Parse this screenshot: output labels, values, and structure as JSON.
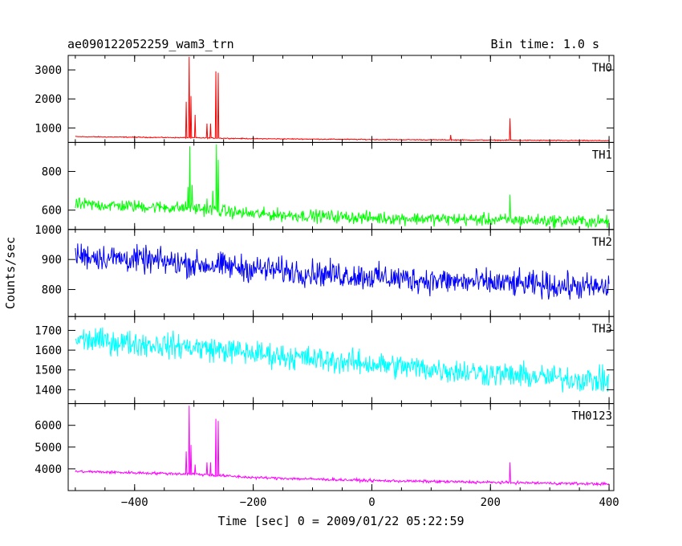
{
  "chart_data": {
    "type": "line",
    "title": "ae090122052259_wam3_trn",
    "bin_time": "Bin time: 1.0 s",
    "xlabel": "Time [sec] 0 = 2009/01/22 05:22:59",
    "ylabel": "Counts/sec",
    "xlim": [
      -512,
      408
    ],
    "x_ticks": [
      -400,
      -200,
      0,
      200,
      400
    ],
    "x_tick_labels": [
      "−400",
      "−200",
      "0",
      "200",
      "400"
    ],
    "x_data_range": [
      -500,
      400
    ],
    "panels": [
      {
        "name": "TH0",
        "color": "#ff0000",
        "ylim": [
          500,
          3500
        ],
        "y_ticks": [
          1000,
          2000,
          3000
        ],
        "y_tick_labels": [
          "1000",
          "2000",
          "3000"
        ],
        "noise": 14,
        "baseline": [
          [
            -500,
            700
          ],
          [
            -300,
            660
          ],
          [
            -200,
            630
          ],
          [
            0,
            600
          ],
          [
            200,
            580
          ],
          [
            400,
            560
          ]
        ],
        "spikes": [
          [
            -313,
            1900
          ],
          [
            -308,
            3450
          ],
          [
            -305,
            2100
          ],
          [
            -298,
            1450
          ],
          [
            -278,
            1150
          ],
          [
            -272,
            1150
          ],
          [
            -263,
            2950
          ],
          [
            -259,
            2900
          ],
          [
            133,
            760
          ],
          [
            233,
            1330
          ]
        ]
      },
      {
        "name": "TH1",
        "color": "#00ff00",
        "ylim": [
          500,
          950
        ],
        "y_ticks": [
          600,
          800
        ],
        "y_tick_labels": [
          "600",
          "800"
        ],
        "noise": 28,
        "baseline": [
          [
            -500,
            630
          ],
          [
            -300,
            610
          ],
          [
            -200,
            580
          ],
          [
            0,
            560
          ],
          [
            200,
            550
          ],
          [
            400,
            540
          ]
        ],
        "spikes": [
          [
            -310,
            720
          ],
          [
            -307,
            930
          ],
          [
            -303,
            730
          ],
          [
            -278,
            660
          ],
          [
            -268,
            700
          ],
          [
            -262,
            940
          ],
          [
            -259,
            860
          ],
          [
            233,
            680
          ]
        ]
      },
      {
        "name": "TH2",
        "color": "#0000ff",
        "ylim": [
          710,
          1000
        ],
        "y_ticks": [
          800,
          900,
          1000
        ],
        "y_tick_labels": [
          "800",
          "900",
          "1000"
        ],
        "noise": 38,
        "baseline": [
          [
            -500,
            915
          ],
          [
            -300,
            885
          ],
          [
            -100,
            855
          ],
          [
            100,
            830
          ],
          [
            250,
            818
          ],
          [
            400,
            805
          ]
        ],
        "spikes": []
      },
      {
        "name": "TH3",
        "color": "#00ffff",
        "ylim": [
          1330,
          1770
        ],
        "y_ticks": [
          1400,
          1500,
          1600,
          1700
        ],
        "y_tick_labels": [
          "1400",
          "1500",
          "1600",
          "1700"
        ],
        "noise": 55,
        "baseline": [
          [
            -500,
            1655
          ],
          [
            -300,
            1615
          ],
          [
            -100,
            1555
          ],
          [
            100,
            1505
          ],
          [
            250,
            1470
          ],
          [
            400,
            1445
          ]
        ],
        "spikes": []
      },
      {
        "name": "TH0123",
        "color": "#ff00ff",
        "ylim": [
          3000,
          7000
        ],
        "y_ticks": [
          4000,
          5000,
          6000
        ],
        "y_tick_labels": [
          "4000",
          "5000",
          "6000"
        ],
        "noise": 55,
        "baseline": [
          [
            -500,
            3880
          ],
          [
            -300,
            3760
          ],
          [
            -200,
            3600
          ],
          [
            0,
            3460
          ],
          [
            200,
            3380
          ],
          [
            400,
            3300
          ]
        ],
        "spikes": [
          [
            -313,
            4800
          ],
          [
            -308,
            6900
          ],
          [
            -305,
            5100
          ],
          [
            -298,
            4200
          ],
          [
            -278,
            4300
          ],
          [
            -272,
            4300
          ],
          [
            -263,
            6300
          ],
          [
            -259,
            6200
          ],
          [
            233,
            4300
          ]
        ]
      }
    ]
  }
}
